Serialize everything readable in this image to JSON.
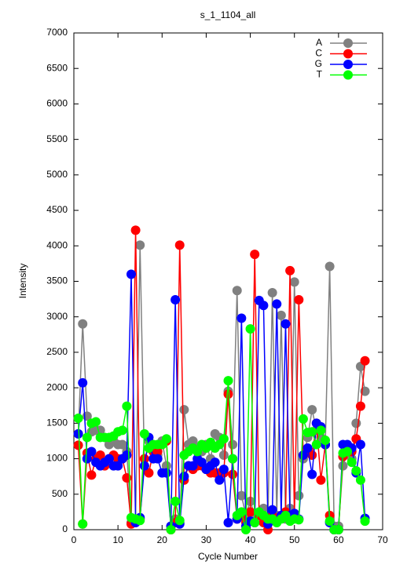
{
  "chart_data": {
    "type": "line",
    "title": "s_1_1104_all",
    "x_label": "Cycle Number",
    "y_label": "Intensity",
    "x": [
      1,
      2,
      3,
      4,
      5,
      6,
      7,
      8,
      9,
      10,
      11,
      12,
      13,
      14,
      15,
      16,
      17,
      18,
      19,
      20,
      21,
      22,
      23,
      24,
      25,
      26,
      27,
      28,
      29,
      30,
      31,
      32,
      33,
      34,
      35,
      36,
      37,
      38,
      39,
      40,
      41,
      42,
      43,
      44,
      45,
      46,
      47,
      48,
      49,
      50,
      51,
      52,
      53,
      54,
      55,
      56,
      57,
      58,
      59,
      60,
      61,
      62,
      63,
      64,
      65,
      66
    ],
    "series": [
      {
        "name": "A",
        "color": "#808080",
        "values": [
          1350,
          2900,
          1600,
          1380,
          1400,
          1400,
          1300,
          1200,
          1250,
          1200,
          1200,
          1100,
          100,
          150,
          4010,
          900,
          1250,
          1150,
          1050,
          1250,
          900,
          50,
          150,
          100,
          1690,
          1200,
          1250,
          1150,
          1100,
          1200,
          1000,
          1350,
          1300,
          1050,
          1950,
          1200,
          3370,
          480,
          200,
          400,
          200,
          200,
          300,
          150,
          3340,
          200,
          3020,
          150,
          300,
          3490,
          480,
          1000,
          1300,
          1690,
          1400,
          1300,
          1200,
          3710,
          50,
          50,
          900,
          1100,
          1000,
          1500,
          2300,
          1950
        ]
      },
      {
        "name": "C",
        "color": "#ff0000",
        "values": [
          1190,
          80,
          1080,
          770,
          1000,
          1050,
          900,
          1000,
          1050,
          1000,
          1000,
          730,
          80,
          4220,
          150,
          1000,
          800,
          1100,
          1100,
          1200,
          1250,
          0,
          100,
          4010,
          700,
          900,
          850,
          900,
          900,
          850,
          800,
          800,
          800,
          800,
          1910,
          780,
          150,
          200,
          100,
          250,
          3880,
          200,
          100,
          0,
          200,
          150,
          200,
          250,
          3650,
          200,
          3240,
          1050,
          1100,
          1050,
          1500,
          700,
          1200,
          200,
          0,
          0,
          1030,
          1100,
          1100,
          1280,
          1740,
          2380
        ]
      },
      {
        "name": "G",
        "color": "#0000ff",
        "values": [
          1350,
          2070,
          1000,
          1100,
          950,
          900,
          950,
          1000,
          900,
          900,
          1000,
          1050,
          3600,
          100,
          170,
          900,
          1300,
          1000,
          1000,
          800,
          800,
          50,
          3240,
          80,
          750,
          900,
          900,
          1000,
          950,
          850,
          900,
          950,
          700,
          850,
          100,
          1000,
          150,
          2980,
          50,
          120,
          100,
          3230,
          3160,
          80,
          280,
          3180,
          200,
          2900,
          200,
          230,
          150,
          1050,
          1150,
          780,
          1500,
          1450,
          1200,
          100,
          0,
          0,
          1200,
          1200,
          1150,
          800,
          1200,
          160
        ]
      },
      {
        "name": "T",
        "color": "#00ff00",
        "values": [
          1570,
          80,
          1300,
          1500,
          1520,
          1300,
          1300,
          1300,
          1320,
          1380,
          1400,
          1740,
          170,
          150,
          130,
          1350,
          1150,
          1200,
          1200,
          1200,
          1280,
          0,
          400,
          130,
          1050,
          1100,
          1150,
          1100,
          1200,
          1150,
          1230,
          1150,
          1200,
          1280,
          2100,
          1000,
          200,
          250,
          0,
          2830,
          100,
          250,
          200,
          150,
          150,
          100,
          150,
          200,
          120,
          150,
          140,
          1560,
          1370,
          1380,
          1200,
          1400,
          1260,
          120,
          0,
          0,
          1080,
          1100,
          950,
          830,
          700,
          120
        ]
      }
    ],
    "xlim": [
      0,
      70
    ],
    "xticks": [
      0,
      10,
      20,
      30,
      40,
      50,
      60,
      70
    ],
    "ylim": [
      0,
      7000
    ],
    "yticks": [
      0,
      500,
      1000,
      1500,
      2000,
      2500,
      3000,
      3500,
      4000,
      4500,
      5000,
      5500,
      6000,
      6500,
      7000
    ],
    "legend": "top-right"
  }
}
